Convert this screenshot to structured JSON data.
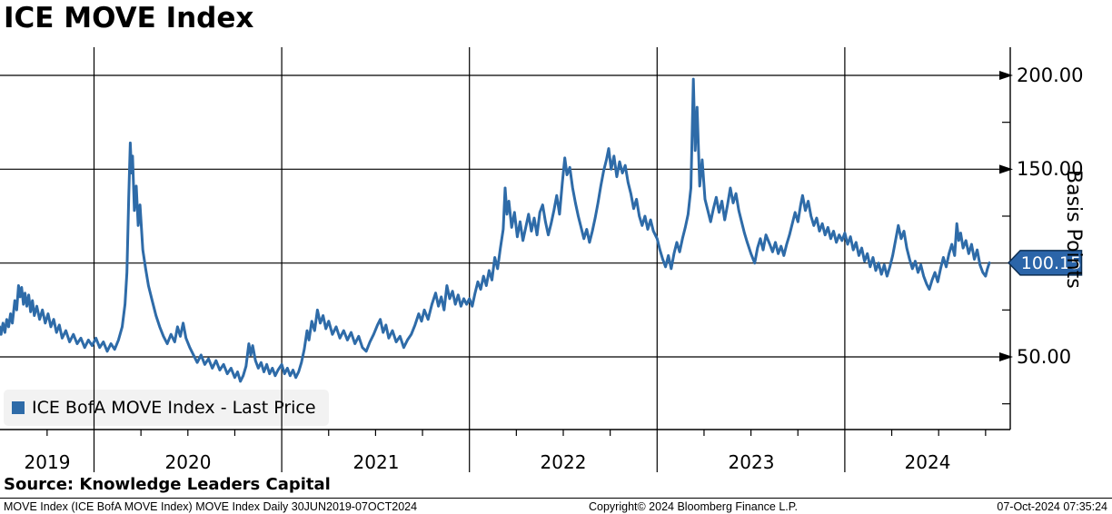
{
  "header": {
    "title": "ICE MOVE Index"
  },
  "legend": {
    "label": "ICE BofA MOVE Index - Last Price",
    "swatch_icon": "blue-square-icon"
  },
  "y_axis": {
    "unit_label": "Basis Points",
    "major_ticks": [
      "200.00",
      "150.00",
      "50.00"
    ],
    "last_price_label": "100.15"
  },
  "x_axis": {
    "year_labels": [
      "2019",
      "2020",
      "2021",
      "2022",
      "2023",
      "2024"
    ]
  },
  "source": {
    "text": "Source: Knowledge Leaders Capital"
  },
  "footer": {
    "left": "MOVE Index (ICE BofA MOVE Index) MOVE Index  Daily 30JUN2019-07OCT2024",
    "center": "Copyright© 2024 Bloomberg Finance L.P.",
    "right": "07-Oct-2024 07:35:24"
  },
  "colors": {
    "line": "#2e6ba8",
    "badge_fill": "#2b65a9",
    "badge_border": "#0d2e52",
    "grid": "#000000",
    "legend_bg": "#f1f1f1"
  },
  "chart_data": {
    "type": "line",
    "title": "ICE MOVE Index",
    "series_name": "ICE BofA MOVE Index - Last Price",
    "ylabel": "Basis Points",
    "xlabel": "",
    "x_unit": "decimal_year",
    "x_range": [
      2019.494,
      2024.77
    ],
    "ylim": [
      11,
      215
    ],
    "y_gridlines": [
      200,
      150,
      100,
      50
    ],
    "y_labeled_ticks": [
      200,
      150,
      50
    ],
    "y_minor_ticks": [
      175,
      125,
      75,
      25
    ],
    "x_gridline_years": [
      2020,
      2021,
      2022,
      2023,
      2024
    ],
    "last_price": 100.15,
    "points": [
      [
        2019.497,
        66
      ],
      [
        2019.505,
        62
      ],
      [
        2019.515,
        68
      ],
      [
        2019.525,
        63
      ],
      [
        2019.535,
        70
      ],
      [
        2019.545,
        66
      ],
      [
        2019.555,
        73
      ],
      [
        2019.565,
        68
      ],
      [
        2019.578,
        80
      ],
      [
        2019.588,
        75
      ],
      [
        2019.598,
        88
      ],
      [
        2019.606,
        82
      ],
      [
        2019.614,
        87
      ],
      [
        2019.624,
        78
      ],
      [
        2019.632,
        84
      ],
      [
        2019.642,
        77
      ],
      [
        2019.652,
        83
      ],
      [
        2019.662,
        74
      ],
      [
        2019.672,
        80
      ],
      [
        2019.682,
        72
      ],
      [
        2019.695,
        77
      ],
      [
        2019.71,
        70
      ],
      [
        2019.725,
        75
      ],
      [
        2019.74,
        68
      ],
      [
        2019.755,
        73
      ],
      [
        2019.77,
        66
      ],
      [
        2019.785,
        70
      ],
      [
        2019.8,
        63
      ],
      [
        2019.815,
        67
      ],
      [
        2019.83,
        60
      ],
      [
        2019.85,
        64
      ],
      [
        2019.87,
        58
      ],
      [
        2019.89,
        62
      ],
      [
        2019.91,
        57
      ],
      [
        2019.93,
        60
      ],
      [
        2019.95,
        55
      ],
      [
        2019.97,
        59
      ],
      [
        2019.99,
        56
      ],
      [
        2020.01,
        60
      ],
      [
        2020.03,
        55
      ],
      [
        2020.05,
        58
      ],
      [
        2020.07,
        53
      ],
      [
        2020.09,
        57
      ],
      [
        2020.11,
        54
      ],
      [
        2020.13,
        59
      ],
      [
        2020.15,
        66
      ],
      [
        2020.165,
        78
      ],
      [
        2020.175,
        95
      ],
      [
        2020.185,
        135
      ],
      [
        2020.193,
        164
      ],
      [
        2020.2,
        148
      ],
      [
        2020.205,
        157
      ],
      [
        2020.215,
        128
      ],
      [
        2020.225,
        141
      ],
      [
        2020.235,
        120
      ],
      [
        2020.245,
        131
      ],
      [
        2020.26,
        107
      ],
      [
        2020.275,
        97
      ],
      [
        2020.29,
        88
      ],
      [
        2020.31,
        80
      ],
      [
        2020.33,
        72
      ],
      [
        2020.35,
        66
      ],
      [
        2020.37,
        61
      ],
      [
        2020.39,
        57
      ],
      [
        2020.41,
        62
      ],
      [
        2020.43,
        58
      ],
      [
        2020.445,
        66
      ],
      [
        2020.46,
        61
      ],
      [
        2020.475,
        68
      ],
      [
        2020.49,
        60
      ],
      [
        2020.51,
        55
      ],
      [
        2020.53,
        51
      ],
      [
        2020.55,
        47
      ],
      [
        2020.57,
        51
      ],
      [
        2020.59,
        46
      ],
      [
        2020.61,
        49
      ],
      [
        2020.63,
        44
      ],
      [
        2020.65,
        48
      ],
      [
        2020.67,
        43
      ],
      [
        2020.69,
        46
      ],
      [
        2020.71,
        41
      ],
      [
        2020.73,
        44
      ],
      [
        2020.75,
        39
      ],
      [
        2020.765,
        42
      ],
      [
        2020.78,
        37
      ],
      [
        2020.795,
        40
      ],
      [
        2020.81,
        45
      ],
      [
        2020.825,
        57
      ],
      [
        2020.835,
        51
      ],
      [
        2020.845,
        56
      ],
      [
        2020.86,
        48
      ],
      [
        2020.875,
        44
      ],
      [
        2020.89,
        47
      ],
      [
        2020.905,
        42
      ],
      [
        2020.92,
        46
      ],
      [
        2020.935,
        41
      ],
      [
        2020.95,
        44
      ],
      [
        2020.965,
        40
      ],
      [
        2020.98,
        43
      ],
      [
        2021.0,
        46
      ],
      [
        2021.015,
        41
      ],
      [
        2021.03,
        44
      ],
      [
        2021.045,
        40
      ],
      [
        2021.06,
        43
      ],
      [
        2021.075,
        39
      ],
      [
        2021.09,
        42
      ],
      [
        2021.105,
        47
      ],
      [
        2021.12,
        54
      ],
      [
        2021.135,
        64
      ],
      [
        2021.145,
        59
      ],
      [
        2021.16,
        69
      ],
      [
        2021.175,
        64
      ],
      [
        2021.19,
        75
      ],
      [
        2021.205,
        68
      ],
      [
        2021.22,
        72
      ],
      [
        2021.235,
        65
      ],
      [
        2021.25,
        69
      ],
      [
        2021.27,
        62
      ],
      [
        2021.29,
        66
      ],
      [
        2021.31,
        60
      ],
      [
        2021.33,
        64
      ],
      [
        2021.35,
        59
      ],
      [
        2021.37,
        63
      ],
      [
        2021.39,
        57
      ],
      [
        2021.41,
        61
      ],
      [
        2021.43,
        55
      ],
      [
        2021.45,
        53
      ],
      [
        2021.47,
        58
      ],
      [
        2021.49,
        62
      ],
      [
        2021.51,
        67
      ],
      [
        2021.525,
        70
      ],
      [
        2021.54,
        63
      ],
      [
        2021.555,
        67
      ],
      [
        2021.57,
        60
      ],
      [
        2021.59,
        64
      ],
      [
        2021.61,
        58
      ],
      [
        2021.63,
        61
      ],
      [
        2021.65,
        55
      ],
      [
        2021.67,
        59
      ],
      [
        2021.69,
        62
      ],
      [
        2021.71,
        67
      ],
      [
        2021.73,
        73
      ],
      [
        2021.745,
        69
      ],
      [
        2021.76,
        75
      ],
      [
        2021.78,
        70
      ],
      [
        2021.8,
        78
      ],
      [
        2021.82,
        84
      ],
      [
        2021.835,
        77
      ],
      [
        2021.85,
        82
      ],
      [
        2021.865,
        75
      ],
      [
        2021.88,
        88
      ],
      [
        2021.895,
        81
      ],
      [
        2021.91,
        85
      ],
      [
        2021.925,
        78
      ],
      [
        2021.94,
        83
      ],
      [
        2021.955,
        77
      ],
      [
        2021.97,
        81
      ],
      [
        2021.985,
        78
      ],
      [
        2022.0,
        81
      ],
      [
        2022.015,
        77
      ],
      [
        2022.03,
        84
      ],
      [
        2022.045,
        90
      ],
      [
        2022.06,
        86
      ],
      [
        2022.075,
        93
      ],
      [
        2022.09,
        88
      ],
      [
        2022.105,
        96
      ],
      [
        2022.12,
        91
      ],
      [
        2022.135,
        103
      ],
      [
        2022.15,
        97
      ],
      [
        2022.165,
        108
      ],
      [
        2022.18,
        118
      ],
      [
        2022.19,
        140
      ],
      [
        2022.2,
        126
      ],
      [
        2022.21,
        133
      ],
      [
        2022.225,
        119
      ],
      [
        2022.24,
        127
      ],
      [
        2022.255,
        114
      ],
      [
        2022.27,
        122
      ],
      [
        2022.285,
        112
      ],
      [
        2022.3,
        119
      ],
      [
        2022.315,
        126
      ],
      [
        2022.33,
        117
      ],
      [
        2022.345,
        124
      ],
      [
        2022.36,
        115
      ],
      [
        2022.375,
        127
      ],
      [
        2022.39,
        131
      ],
      [
        2022.405,
        122
      ],
      [
        2022.42,
        115
      ],
      [
        2022.435,
        121
      ],
      [
        2022.45,
        128
      ],
      [
        2022.465,
        136
      ],
      [
        2022.48,
        126
      ],
      [
        2022.495,
        143
      ],
      [
        2022.508,
        156
      ],
      [
        2022.52,
        147
      ],
      [
        2022.535,
        151
      ],
      [
        2022.55,
        140
      ],
      [
        2022.565,
        132
      ],
      [
        2022.58,
        125
      ],
      [
        2022.595,
        119
      ],
      [
        2022.61,
        113
      ],
      [
        2022.625,
        118
      ],
      [
        2022.64,
        111
      ],
      [
        2022.655,
        117
      ],
      [
        2022.67,
        124
      ],
      [
        2022.685,
        132
      ],
      [
        2022.7,
        141
      ],
      [
        2022.715,
        149
      ],
      [
        2022.73,
        155
      ],
      [
        2022.742,
        161
      ],
      [
        2022.755,
        150
      ],
      [
        2022.77,
        157
      ],
      [
        2022.785,
        146
      ],
      [
        2022.8,
        154
      ],
      [
        2022.815,
        148
      ],
      [
        2022.83,
        152
      ],
      [
        2022.845,
        143
      ],
      [
        2022.86,
        137
      ],
      [
        2022.875,
        129
      ],
      [
        2022.89,
        134
      ],
      [
        2022.905,
        125
      ],
      [
        2022.92,
        120
      ],
      [
        2022.935,
        125
      ],
      [
        2022.95,
        118
      ],
      [
        2022.965,
        123
      ],
      [
        2022.98,
        117
      ],
      [
        2023.0,
        113
      ],
      [
        2023.015,
        107
      ],
      [
        2023.03,
        102
      ],
      [
        2023.045,
        98
      ],
      [
        2023.06,
        104
      ],
      [
        2023.075,
        97
      ],
      [
        2023.09,
        105
      ],
      [
        2023.105,
        111
      ],
      [
        2023.12,
        106
      ],
      [
        2023.135,
        113
      ],
      [
        2023.15,
        119
      ],
      [
        2023.165,
        126
      ],
      [
        2023.18,
        140
      ],
      [
        2023.193,
        198
      ],
      [
        2023.203,
        160
      ],
      [
        2023.213,
        183
      ],
      [
        2023.227,
        141
      ],
      [
        2023.24,
        155
      ],
      [
        2023.255,
        134
      ],
      [
        2023.27,
        128
      ],
      [
        2023.285,
        122
      ],
      [
        2023.3,
        129
      ],
      [
        2023.315,
        135
      ],
      [
        2023.33,
        127
      ],
      [
        2023.345,
        133
      ],
      [
        2023.36,
        123
      ],
      [
        2023.375,
        131
      ],
      [
        2023.39,
        140
      ],
      [
        2023.405,
        132
      ],
      [
        2023.42,
        137
      ],
      [
        2023.435,
        128
      ],
      [
        2023.45,
        122
      ],
      [
        2023.465,
        116
      ],
      [
        2023.48,
        111
      ],
      [
        2023.5,
        105
      ],
      [
        2023.52,
        100
      ],
      [
        2023.535,
        108
      ],
      [
        2023.55,
        113
      ],
      [
        2023.565,
        107
      ],
      [
        2023.58,
        115
      ],
      [
        2023.6,
        110
      ],
      [
        2023.615,
        106
      ],
      [
        2023.63,
        111
      ],
      [
        2023.645,
        105
      ],
      [
        2023.66,
        109
      ],
      [
        2023.675,
        104
      ],
      [
        2023.69,
        110
      ],
      [
        2023.705,
        115
      ],
      [
        2023.72,
        121
      ],
      [
        2023.735,
        127
      ],
      [
        2023.75,
        122
      ],
      [
        2023.765,
        131
      ],
      [
        2023.775,
        136
      ],
      [
        2023.79,
        128
      ],
      [
        2023.805,
        133
      ],
      [
        2023.82,
        125
      ],
      [
        2023.835,
        120
      ],
      [
        2023.85,
        124
      ],
      [
        2023.865,
        117
      ],
      [
        2023.88,
        121
      ],
      [
        2023.895,
        115
      ],
      [
        2023.91,
        119
      ],
      [
        2023.925,
        113
      ],
      [
        2023.94,
        117
      ],
      [
        2023.955,
        111
      ],
      [
        2023.97,
        115
      ],
      [
        2023.985,
        112
      ],
      [
        2024.0,
        116
      ],
      [
        2024.015,
        110
      ],
      [
        2024.03,
        114
      ],
      [
        2024.045,
        107
      ],
      [
        2024.06,
        111
      ],
      [
        2024.075,
        104
      ],
      [
        2024.09,
        108
      ],
      [
        2024.105,
        101
      ],
      [
        2024.12,
        105
      ],
      [
        2024.135,
        98
      ],
      [
        2024.15,
        103
      ],
      [
        2024.165,
        96
      ],
      [
        2024.18,
        100
      ],
      [
        2024.195,
        94
      ],
      [
        2024.21,
        99
      ],
      [
        2024.225,
        93
      ],
      [
        2024.24,
        98
      ],
      [
        2024.255,
        104
      ],
      [
        2024.27,
        112
      ],
      [
        2024.285,
        120
      ],
      [
        2024.3,
        113
      ],
      [
        2024.315,
        117
      ],
      [
        2024.33,
        108
      ],
      [
        2024.345,
        102
      ],
      [
        2024.36,
        97
      ],
      [
        2024.375,
        101
      ],
      [
        2024.39,
        95
      ],
      [
        2024.405,
        99
      ],
      [
        2024.42,
        93
      ],
      [
        2024.435,
        89
      ],
      [
        2024.45,
        86
      ],
      [
        2024.465,
        91
      ],
      [
        2024.48,
        95
      ],
      [
        2024.495,
        90
      ],
      [
        2024.51,
        97
      ],
      [
        2024.525,
        103
      ],
      [
        2024.54,
        98
      ],
      [
        2024.555,
        105
      ],
      [
        2024.57,
        110
      ],
      [
        2024.585,
        104
      ],
      [
        2024.597,
        121
      ],
      [
        2024.607,
        112
      ],
      [
        2024.617,
        116
      ],
      [
        2024.63,
        108
      ],
      [
        2024.645,
        112
      ],
      [
        2024.66,
        105
      ],
      [
        2024.675,
        110
      ],
      [
        2024.69,
        102
      ],
      [
        2024.705,
        107
      ],
      [
        2024.72,
        99
      ],
      [
        2024.735,
        95
      ],
      [
        2024.75,
        93
      ],
      [
        2024.76,
        97
      ],
      [
        2024.77,
        100.15
      ]
    ]
  }
}
